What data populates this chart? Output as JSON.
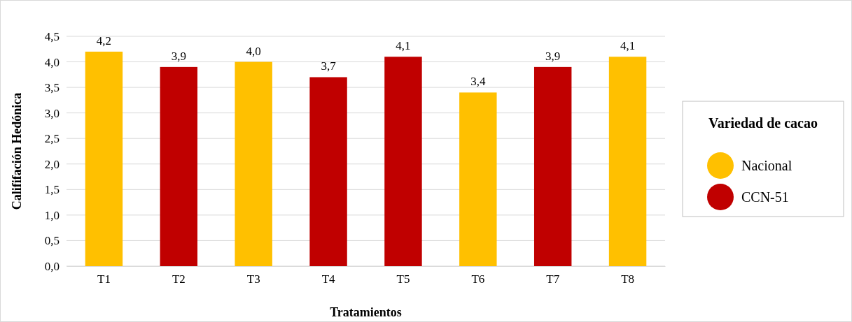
{
  "chart_data": {
    "type": "bar",
    "xlabel": "Tratamientos",
    "ylabel": "Calififación Hedónica",
    "legend_title": "Variedad de cacao",
    "legend": "right",
    "grid": "y",
    "categories": [
      "T1",
      "T2",
      "T3",
      "T4",
      "T5",
      "T6",
      "T7",
      "T8"
    ],
    "ylim": [
      0,
      4.5
    ],
    "yticks": [
      {
        "value": 0,
        "label": "0,0"
      },
      {
        "value": 0.5,
        "label": "0,5"
      },
      {
        "value": 1,
        "label": "1,0"
      },
      {
        "value": 1.5,
        "label": "1,5"
      },
      {
        "value": 2,
        "label": "2,0"
      },
      {
        "value": 2.5,
        "label": "2,5"
      },
      {
        "value": 3,
        "label": "3,0"
      },
      {
        "value": 3.5,
        "label": "3,5"
      },
      {
        "value": 4,
        "label": "4,0"
      },
      {
        "value": 4.5,
        "label": "4,5"
      }
    ],
    "series": [
      {
        "name": "Nacional",
        "color": "#ffc000",
        "values": [
          4.2,
          null,
          4.0,
          null,
          null,
          3.4,
          null,
          4.1
        ],
        "value_labels": [
          "4,2",
          null,
          "4,0",
          null,
          null,
          "3,4",
          null,
          "4,1"
        ]
      },
      {
        "name": "CCN-51",
        "color": "#c00000",
        "values": [
          null,
          3.9,
          null,
          3.7,
          4.1,
          null,
          3.9,
          null
        ],
        "value_labels": [
          null,
          "3,9",
          null,
          "3,7",
          "4,1",
          null,
          "3,9",
          null
        ]
      }
    ]
  }
}
